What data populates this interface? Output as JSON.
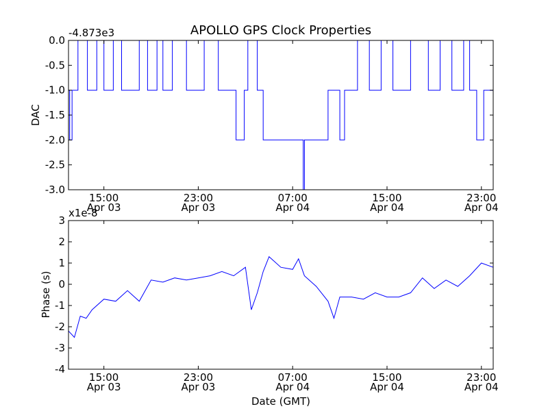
{
  "figure": {
    "title": "APOLLO GPS Clock Properties",
    "xlabel": "Date (GMT)"
  },
  "time_ticks": [
    {
      "hour": 15,
      "time": "15:00",
      "date": "Apr 03"
    },
    {
      "hour": 23,
      "time": "23:00",
      "date": "Apr 03"
    },
    {
      "hour": 31,
      "time": "07:00",
      "date": "Apr 04"
    },
    {
      "hour": 39,
      "time": "15:00",
      "date": "Apr 04"
    },
    {
      "hour": 47,
      "time": "23:00",
      "date": "Apr 04"
    }
  ],
  "chart_data": [
    {
      "type": "line",
      "ylabel": "DAC",
      "offset_label": "-4.873e3",
      "x_unit": "hours since Apr 03 00:00 GMT",
      "xlim": [
        12.0,
        48.0
      ],
      "ylim": [
        -3.0,
        0.0
      ],
      "yticks": [
        "0.0",
        "-0.5",
        "-1.0",
        "-1.5",
        "-2.0",
        "-2.5",
        "-3.0"
      ],
      "grid": false,
      "color": "#0000ff",
      "series": [
        {
          "x": [
            12.0,
            12.1,
            12.3,
            12.8,
            13.6,
            14.4,
            15.0,
            15.8,
            16.5,
            18.0,
            18.7,
            19.5,
            20.0,
            20.8,
            22.0,
            23.5,
            24.7,
            25.5,
            26.2,
            26.9,
            27.2,
            28.0,
            28.5,
            29.0,
            30.0,
            31.0,
            31.9,
            32.0,
            33.0,
            34.0,
            35.0,
            35.4,
            36.5,
            37.5,
            38.5,
            39.5,
            41.0,
            42.5,
            43.5,
            44.5,
            45.5,
            46.0,
            46.6,
            47.2,
            48.0
          ],
          "values": [
            -1.0,
            -2.0,
            -1.0,
            0.0,
            -1.0,
            0.0,
            -1.0,
            0.0,
            -1.0,
            0.0,
            -1.0,
            0.0,
            -1.0,
            0.0,
            -1.0,
            0.0,
            -1.0,
            -1.0,
            -2.0,
            -1.0,
            0.0,
            -1.0,
            -2.0,
            -2.0,
            -2.0,
            -2.0,
            -3.0,
            -2.0,
            -2.0,
            -1.0,
            -2.0,
            -1.0,
            0.0,
            -1.0,
            0.0,
            -1.0,
            0.0,
            -1.0,
            0.0,
            -1.0,
            0.0,
            -1.0,
            -2.0,
            -1.0,
            -1.0
          ]
        }
      ]
    },
    {
      "type": "line",
      "ylabel": "Phase (s)",
      "offset_label": "x1e-8",
      "x_unit": "hours since Apr 03 00:00 GMT",
      "xlim": [
        12.0,
        48.0
      ],
      "ylim": [
        -4,
        3
      ],
      "yticks": [
        "3",
        "2",
        "1",
        "0",
        "-1",
        "-2",
        "-3",
        "-4"
      ],
      "grid": false,
      "color": "#0000ff",
      "series": [
        {
          "x": [
            12.0,
            12.5,
            13.0,
            13.5,
            14.0,
            15.0,
            16.0,
            17.0,
            18.0,
            19.0,
            20.0,
            21.0,
            22.0,
            23.0,
            24.0,
            25.0,
            26.0,
            27.0,
            27.5,
            28.0,
            28.5,
            29.0,
            30.0,
            31.0,
            31.5,
            32.0,
            33.0,
            34.0,
            34.5,
            35.0,
            36.0,
            37.0,
            38.0,
            39.0,
            40.0,
            41.0,
            42.0,
            43.0,
            44.0,
            45.0,
            46.0,
            47.0,
            48.0
          ],
          "values": [
            -2.2,
            -2.5,
            -1.5,
            -1.6,
            -1.2,
            -0.7,
            -0.8,
            -0.3,
            -0.8,
            0.2,
            0.1,
            0.3,
            0.2,
            0.3,
            0.4,
            0.6,
            0.4,
            0.8,
            -1.2,
            -0.4,
            0.6,
            1.3,
            0.8,
            0.7,
            1.2,
            0.4,
            -0.1,
            -0.8,
            -1.6,
            -0.6,
            -0.6,
            -0.7,
            -0.4,
            -0.6,
            -0.6,
            -0.4,
            0.3,
            -0.2,
            0.2,
            -0.1,
            0.4,
            1.0,
            0.8
          ]
        }
      ]
    }
  ]
}
